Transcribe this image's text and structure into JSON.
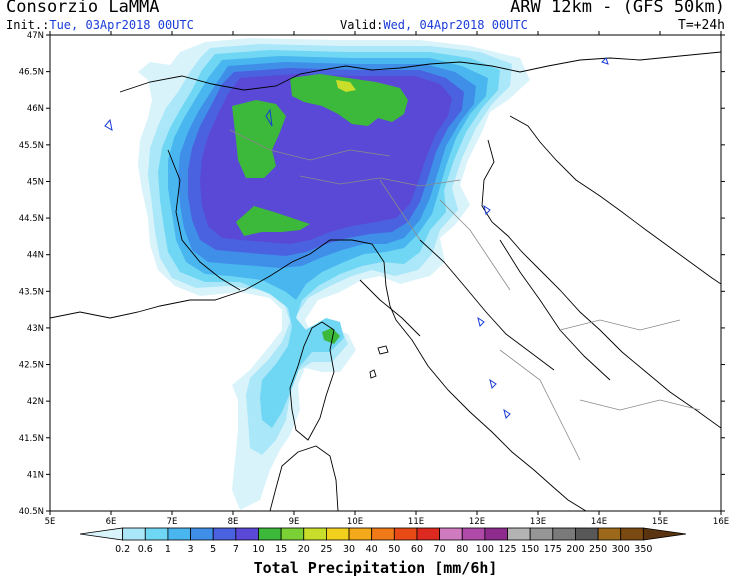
{
  "header": {
    "producer": "Consorzio LaMMA",
    "model": "ARW 12km - (GFS 50km)",
    "init_label": "Init.:",
    "init_value": "Tue, 03Apr2018 00UTC",
    "valid_label": "Valid:",
    "valid_value": "Wed, 04Apr2018 00UTC",
    "lead_time": "T=+24h"
  },
  "map": {
    "lat_labels": [
      "47N",
      "46.5N",
      "46N",
      "45.5N",
      "45N",
      "44.5N",
      "44N",
      "43.5N",
      "43N",
      "42.5N",
      "42N",
      "41.5N",
      "41N",
      "40.5N"
    ],
    "lon_labels": [
      "5E",
      "6E",
      "7E",
      "8E",
      "9E",
      "10E",
      "11E",
      "12E",
      "13E",
      "14E",
      "15E",
      "16E"
    ]
  },
  "colorbar": {
    "title": "Total Precipitation [mm/6h]",
    "levels": [
      "0.2",
      "0.6",
      "1",
      "3",
      "5",
      "7",
      "10",
      "15",
      "20",
      "25",
      "30",
      "40",
      "50",
      "60",
      "70",
      "80",
      "100",
      "125",
      "150",
      "175",
      "200",
      "250",
      "300",
      "350"
    ],
    "colors": [
      "#d9f3fb",
      "#a9e7f9",
      "#6fd6f3",
      "#49b6f0",
      "#3f8fe8",
      "#4a62e0",
      "#5a48d6",
      "#3cb83a",
      "#7ad035",
      "#c8de2a",
      "#f2d11e",
      "#f4a91b",
      "#f07a17",
      "#e84a16",
      "#dc2a20",
      "#d07ac0",
      "#b04aa8",
      "#8e2c8e",
      "#b3b3b3",
      "#969696",
      "#7a7a7a",
      "#585858",
      "#9c6a1a",
      "#7a4a12",
      "#5a3410"
    ]
  }
}
